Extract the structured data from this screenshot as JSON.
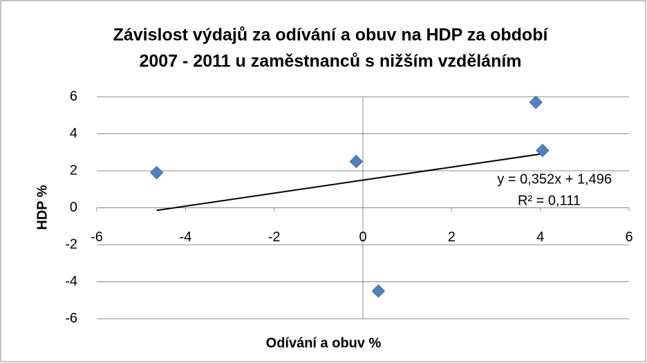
{
  "chart_data": {
    "type": "scatter",
    "title": [
      "Závislost výdajů za odívání a obuv na HDP za období",
      "2007 - 2011 u zaměstnanců s nižším vzděláním"
    ],
    "x_label": "Odívání a obuv %",
    "y_label": "HDP %",
    "x": [
      -4.65,
      -0.15,
      0.35,
      3.9,
      4.05
    ],
    "values": [
      1.9,
      2.5,
      -4.5,
      5.7,
      3.1
    ],
    "color": "#4f81bd",
    "xlim": [
      -6,
      6
    ],
    "xticks": [
      -6,
      -4,
      -2,
      0,
      2,
      4,
      6
    ],
    "ylim": [
      -6,
      6
    ],
    "yticks": [
      -6,
      -4,
      -2,
      0,
      2,
      4,
      6
    ],
    "grid": true,
    "trendline": {
      "slope": 0.352,
      "intercept": 1.496,
      "label": "y = 0,352x + 1,496",
      "r2_label": "R² = 0,111"
    }
  }
}
